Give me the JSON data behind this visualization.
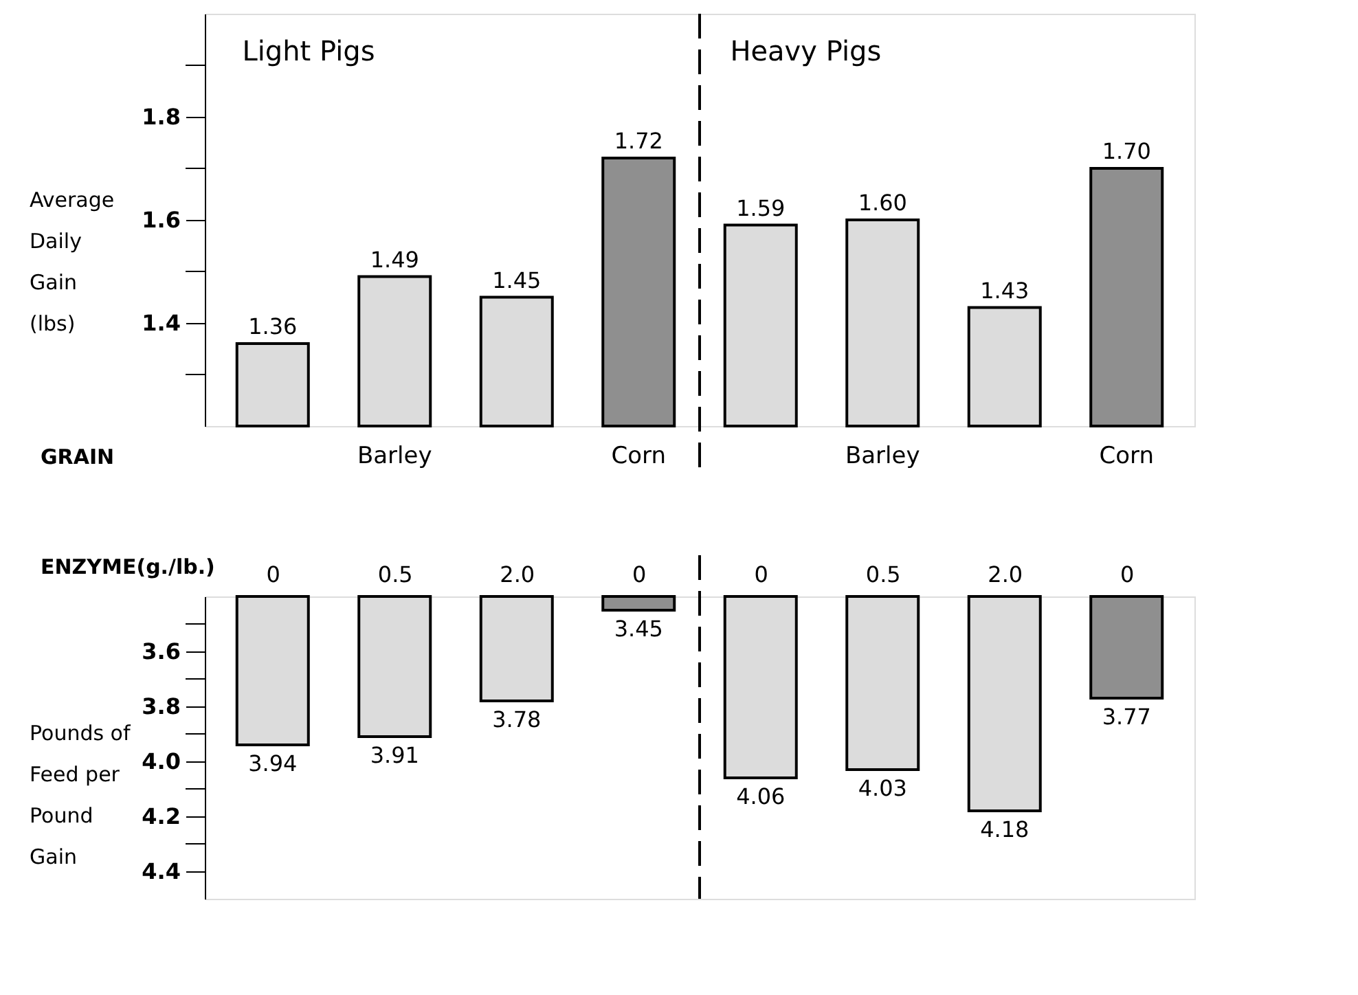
{
  "chart_data": [
    {
      "type": "bar",
      "ylabel": "Average Daily Gain (lbs)",
      "xlabel": "GRAIN",
      "categories": [
        "0",
        "0.5",
        "2.0",
        "0",
        "0",
        "0.5",
        "2.0",
        "0"
      ],
      "values": [
        1.36,
        1.49,
        1.45,
        1.72,
        1.59,
        1.6,
        1.43,
        1.7
      ],
      "colors": [
        "#dcdcdc",
        "#dcdcdc",
        "#dcdcdc",
        "#8f8f8f",
        "#dcdcdc",
        "#dcdcdc",
        "#dcdcdc",
        "#8f8f8f"
      ],
      "ylim": [
        1.2,
        2.0
      ],
      "yticks": [
        {
          "value": 1.3,
          "label": null
        },
        1.4,
        {
          "value": 1.5,
          "label": null
        },
        1.6,
        {
          "value": 1.7,
          "label": null
        },
        1.8,
        {
          "value": 1.9,
          "label": null
        }
      ],
      "value_labels": [
        "1.36",
        "1.49",
        "1.45",
        "1.72",
        "1.59",
        "1.60",
        "1.43",
        "1.70"
      ],
      "grid": false,
      "tick_labels": "y",
      "annotations": [
        "Light Pigs",
        "Heavy Pigs",
        "Barley",
        "Corn",
        "Barley",
        "Corn"
      ]
    },
    {
      "type": "bar",
      "ylabel": "Pounds of Feed per Pound Gain",
      "xlabel": "ENZYME(g./lb.)",
      "categories": [
        "0",
        "0.5",
        "2.0",
        "0",
        "0",
        "0.5",
        "2.0",
        "0"
      ],
      "values": [
        3.94,
        3.91,
        3.78,
        3.45,
        4.06,
        4.03,
        4.18,
        3.77
      ],
      "colors": [
        "#dcdcdc",
        "#dcdcdc",
        "#dcdcdc",
        "#8f8f8f",
        "#dcdcdc",
        "#dcdcdc",
        "#dcdcdc",
        "#8f8f8f"
      ],
      "ylim": [
        4.5,
        3.4
      ],
      "yticks": [
        {
          "value": 3.5,
          "label": null
        },
        3.6,
        {
          "value": 3.7,
          "label": null
        },
        3.8,
        {
          "value": 3.9,
          "label": null
        },
        {
          "value": 4.0,
          "label": "4.0"
        },
        {
          "value": 4.1,
          "label": null
        },
        4.2,
        {
          "value": 4.3,
          "label": null
        },
        4.4
      ],
      "value_labels": [
        "3.94",
        "3.91",
        "3.78",
        "3.45",
        "4.06",
        "4.03",
        "4.18",
        "3.77"
      ],
      "grid": false
    }
  ]
}
